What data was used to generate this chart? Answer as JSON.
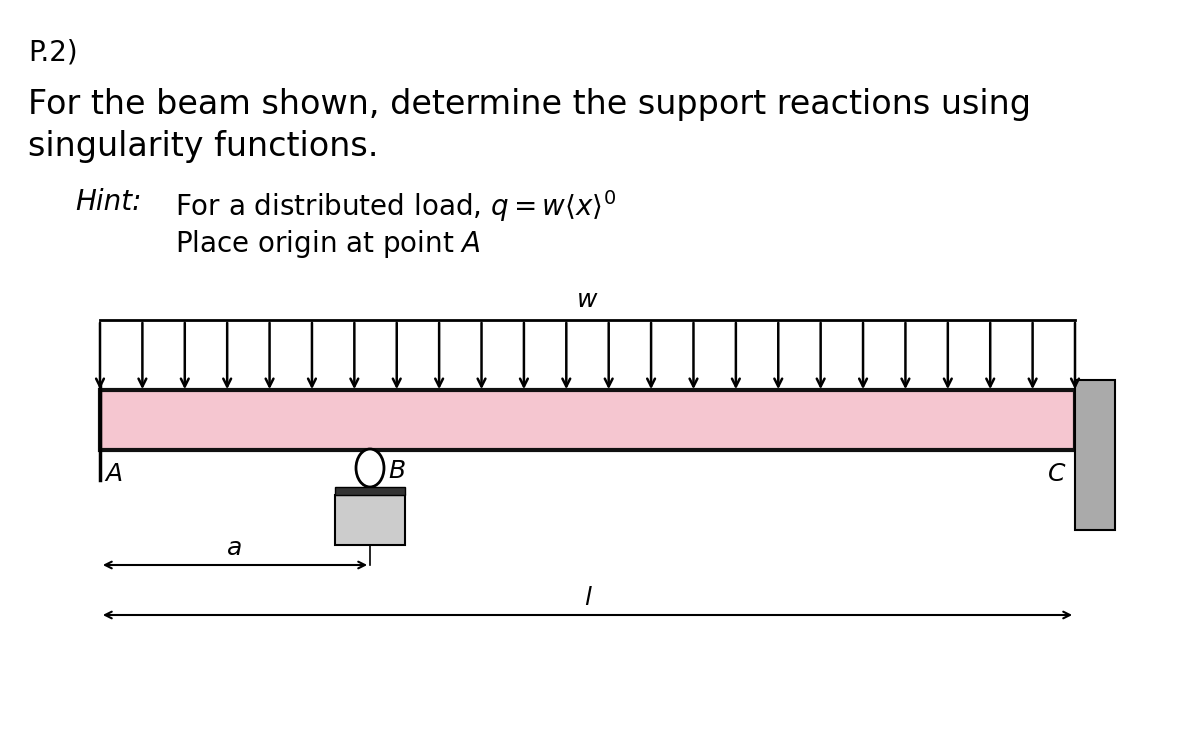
{
  "title": "P.2)",
  "body_line1": "For the beam shown, determine the support reactions using",
  "body_line2": "singularity functions.",
  "hint_label": "Hint:",
  "hint_line1": "For a distributed load, $q = w\\langle x\\rangle^0$",
  "hint_line2": "Place origin at point $A$",
  "beam_color": "#f5c6d0",
  "beam_border_color": "#111111",
  "wall_color": "#aaaaaa",
  "bg_color": "#ffffff",
  "n_arrows": 24,
  "label_A": "A",
  "label_B": "B",
  "label_C": "C",
  "label_w": "w",
  "label_a": "a",
  "label_l": "l",
  "title_fontsize": 20,
  "body_fontsize": 24,
  "hint_fontsize": 20,
  "diagram_fontsize": 18
}
